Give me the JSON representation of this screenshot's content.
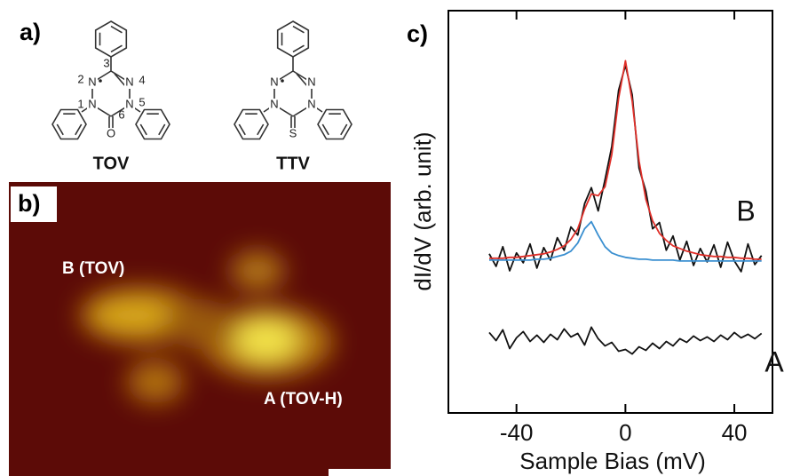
{
  "panels": {
    "a": {
      "label": "a)",
      "tov": {
        "name": "TOV",
        "atoms": [
          "N",
          "N",
          "N",
          "N",
          "O"
        ],
        "numbers": [
          "1",
          "2",
          "3",
          "4",
          "5",
          "6"
        ]
      },
      "ttv": {
        "name": "TTV",
        "atoms": [
          "N",
          "N",
          "N",
          "N",
          "S"
        ]
      }
    },
    "b": {
      "label": "b)",
      "annotations": [
        "B (TOV)",
        "A (TOV-H)"
      ]
    },
    "c": {
      "label": "c)"
    }
  },
  "chart_data": {
    "type": "line",
    "x_label": "Sample Bias (mV)",
    "y_label": "dI/dV (arb. unit)",
    "x": [
      -50,
      -47.5,
      -45,
      -42.5,
      -40,
      -37.5,
      -35,
      -32.5,
      -30,
      -27.5,
      -25,
      -22.5,
      -20,
      -17.5,
      -15,
      -12.5,
      -10,
      -7.5,
      -5,
      -2.5,
      0,
      2.5,
      5,
      7.5,
      10,
      12.5,
      15,
      17.5,
      20,
      22.5,
      25,
      27.5,
      30,
      32.5,
      35,
      37.5,
      40,
      42.5,
      45,
      47.5,
      50
    ],
    "series": [
      {
        "name": "B",
        "color": "#111111",
        "values": [
          17.8,
          16.4,
          18.6,
          15.9,
          17.9,
          16.8,
          18.9,
          16.2,
          18.5,
          17.1,
          19.6,
          18.2,
          20.8,
          19.9,
          23.4,
          25.2,
          22.6,
          26.1,
          29.8,
          36.1,
          38.9,
          35.6,
          27.4,
          24.8,
          20.6,
          21.3,
          18.2,
          19.8,
          17.1,
          19.2,
          16.5,
          18.4,
          16.9,
          18.8,
          16.3,
          19.1,
          17.0,
          15.8,
          18.9,
          16.6,
          17.6
        ]
      },
      {
        "color": "#e0302a",
        "values": [
          17.3,
          17.3,
          17.3,
          17.4,
          17.4,
          17.5,
          17.6,
          17.7,
          17.8,
          18.0,
          18.3,
          18.7,
          19.4,
          20.6,
          22.8,
          24.5,
          24.3,
          25.3,
          28.9,
          35.2,
          39.4,
          34.9,
          28.2,
          23.9,
          21.5,
          20.1,
          19.3,
          18.7,
          18.4,
          18.1,
          17.9,
          17.7,
          17.6,
          17.5,
          17.5,
          17.4,
          17.4,
          17.3,
          17.3,
          17.2,
          17.2
        ]
      },
      {
        "color": "#3a8fd0",
        "values": [
          17.1,
          17.1,
          17.1,
          17.1,
          17.1,
          17.1,
          17.1,
          17.2,
          17.2,
          17.3,
          17.5,
          17.7,
          18.1,
          19.0,
          20.6,
          21.4,
          19.9,
          18.6,
          17.9,
          17.6,
          17.4,
          17.3,
          17.2,
          17.2,
          17.1,
          17.1,
          17.1,
          17.1,
          17.0,
          17.0,
          17.0,
          17.0,
          17.0,
          17.0,
          17.0,
          17.0,
          17.0,
          17.0,
          17.0,
          17.0,
          17.0
        ]
      },
      {
        "name": "A",
        "color": "#111111",
        "values": [
          9.0,
          8.1,
          9.3,
          7.2,
          8.4,
          9.1,
          8.0,
          8.7,
          7.9,
          8.8,
          8.2,
          9.4,
          8.5,
          8.9,
          7.6,
          9.6,
          8.3,
          7.5,
          7.9,
          6.9,
          7.1,
          6.6,
          7.4,
          7.0,
          7.8,
          7.2,
          8.0,
          7.5,
          8.3,
          7.9,
          8.6,
          8.1,
          8.5,
          8.0,
          8.7,
          8.2,
          9.0,
          8.4,
          8.8,
          8.3,
          8.9
        ]
      }
    ],
    "xlim": [
      -65,
      54
    ],
    "xticks": [
      -40,
      0,
      40
    ],
    "ylim": [
      0,
      45
    ]
  }
}
